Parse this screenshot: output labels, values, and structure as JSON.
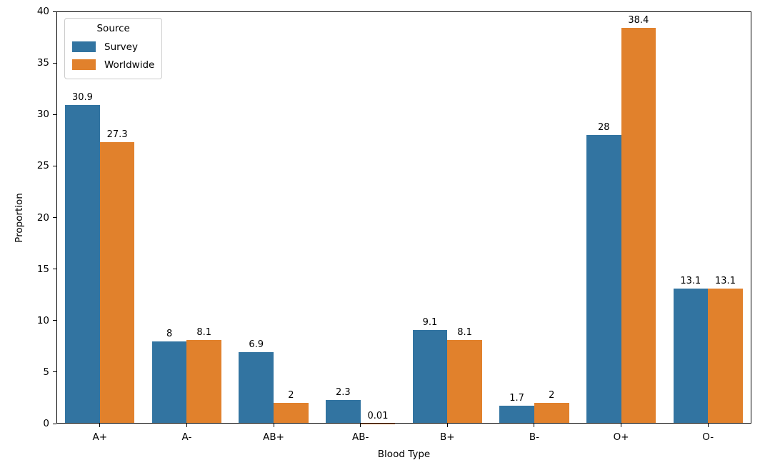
{
  "chart_data": {
    "type": "bar",
    "title": "",
    "xlabel": "Blood Type",
    "ylabel": "Proportion",
    "categories": [
      "A+",
      "A-",
      "AB+",
      "AB-",
      "B+",
      "B-",
      "O+",
      "O-"
    ],
    "series": [
      {
        "name": "Survey",
        "color": "#3274a1",
        "values": [
          30.9,
          8,
          6.9,
          2.3,
          9.1,
          1.7,
          28,
          13.1
        ],
        "labels": [
          "30.9",
          "8",
          "6.9",
          "2.3",
          "9.1",
          "1.7",
          "28",
          "13.1"
        ]
      },
      {
        "name": "Worldwide",
        "color": "#e1812c",
        "values": [
          27.3,
          8.1,
          2,
          0.01,
          8.1,
          2,
          38.4,
          13.1
        ],
        "labels": [
          "27.3",
          "8.1",
          "2",
          "0.01",
          "8.1",
          "2",
          "38.4",
          "13.1"
        ]
      }
    ],
    "ylim": [
      0,
      40
    ],
    "yticks": [
      0,
      5,
      10,
      15,
      20,
      25,
      30,
      35,
      40
    ],
    "legend": {
      "title": "Source",
      "position": "upper-left"
    },
    "grid": false,
    "colors": {
      "survey_bar": "#3274a1",
      "worldwide_bar": "#e1812c",
      "spine": "#000000",
      "text": "#000000"
    }
  }
}
